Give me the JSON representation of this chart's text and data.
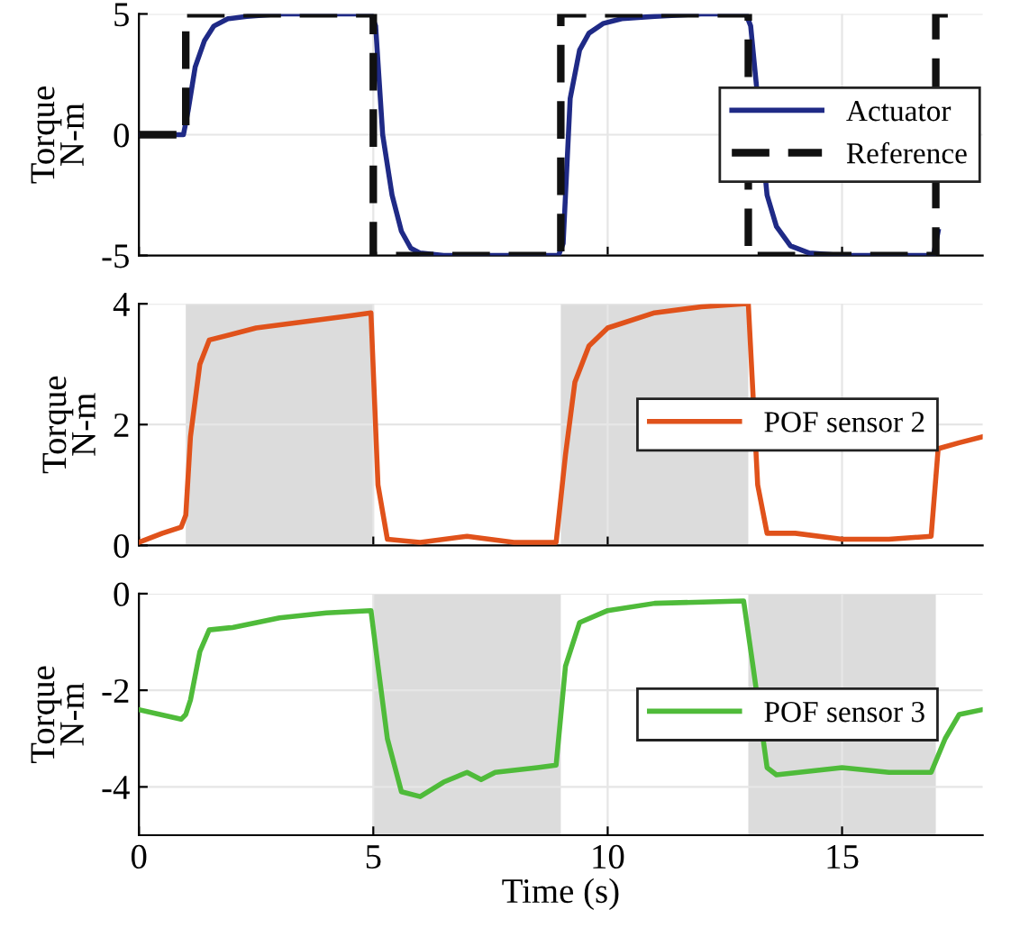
{
  "chart_data": [
    {
      "type": "line",
      "ylabel": "Torque\nN-m",
      "xlim": [
        0,
        18
      ],
      "xticks": [
        0,
        5,
        10,
        15
      ],
      "ylim": [
        -5,
        5
      ],
      "yticks": [
        -5,
        0,
        5
      ],
      "tick_labels": "y",
      "grid": true,
      "legend": "right",
      "series": [
        {
          "name": "Actuator",
          "color": "#1f2a86",
          "line_style": "solid",
          "x": [
            0,
            0.95,
            1.05,
            1.2,
            1.4,
            1.6,
            1.9,
            2.3,
            3,
            4,
            4.95,
            5.05,
            5.2,
            5.4,
            5.6,
            5.8,
            6,
            6.5,
            7,
            8,
            8.95,
            9.05,
            9.2,
            9.4,
            9.6,
            9.9,
            10.3,
            11,
            12,
            12.95,
            13.05,
            13.4,
            13.6,
            13.9,
            14.3,
            15,
            16,
            16.95,
            17.05
          ],
          "values": [
            0,
            0,
            1,
            2.8,
            3.9,
            4.5,
            4.8,
            4.9,
            5,
            5,
            5,
            4.5,
            0,
            -2.5,
            -4,
            -4.7,
            -4.9,
            -5,
            -5,
            -5,
            -5,
            -4.5,
            1.5,
            3.5,
            4.2,
            4.6,
            4.8,
            4.9,
            5,
            5,
            4.5,
            -2.5,
            -3.8,
            -4.6,
            -4.9,
            -5,
            -5,
            -5,
            -4
          ]
        },
        {
          "name": "Reference",
          "color": "#111111",
          "line_style": "dashed",
          "x": [
            0,
            1,
            1,
            5,
            5,
            9,
            9,
            13,
            13,
            17,
            17,
            17.5
          ],
          "values": [
            0,
            0,
            5,
            5,
            -5,
            -5,
            5,
            5,
            -5,
            -5,
            5,
            5
          ]
        }
      ]
    },
    {
      "type": "line",
      "ylabel": "Torque\nN-m",
      "xlim": [
        0,
        18
      ],
      "xticks": [
        0,
        5,
        10,
        15
      ],
      "ylim": [
        0,
        4
      ],
      "yticks": [
        0,
        2,
        4
      ],
      "tick_labels": "y",
      "grid": true,
      "legend": "right",
      "bands": [
        {
          "axis": "x",
          "from": 1,
          "to": 5,
          "color": "#dcdcdc"
        },
        {
          "axis": "x",
          "from": 9,
          "to": 13,
          "color": "#dcdcdc"
        }
      ],
      "series": [
        {
          "name": "POF sensor 2",
          "color": "#e0521b",
          "line_style": "solid",
          "x": [
            0,
            0.5,
            0.9,
            1.0,
            1.1,
            1.3,
            1.5,
            2.5,
            3.5,
            4.5,
            4.95,
            5.1,
            5.3,
            6,
            7,
            8,
            8.9,
            9.1,
            9.3,
            9.6,
            10,
            11,
            12,
            12.9,
            13.0,
            13.2,
            13.4,
            14,
            15,
            16,
            16.9,
            17.05,
            17.5,
            18
          ],
          "values": [
            0.05,
            0.2,
            0.3,
            0.5,
            1.8,
            3.0,
            3.4,
            3.6,
            3.7,
            3.8,
            3.85,
            1.0,
            0.1,
            0.05,
            0.15,
            0.05,
            0.05,
            1.5,
            2.7,
            3.3,
            3.6,
            3.85,
            3.95,
            4.0,
            4.0,
            1.0,
            0.2,
            0.2,
            0.1,
            0.1,
            0.15,
            1.6,
            1.7,
            1.8
          ]
        }
      ]
    },
    {
      "type": "line",
      "ylabel": "Torque\nN-m",
      "xlabel": "Time (s)",
      "xlim": [
        0,
        18
      ],
      "xticks": [
        0,
        5,
        10,
        15
      ],
      "ylim": [
        -5,
        0
      ],
      "yticks": [
        -4,
        -2,
        0
      ],
      "grid": true,
      "legend": "right",
      "bands": [
        {
          "axis": "x",
          "from": 5,
          "to": 9,
          "color": "#dcdcdc"
        },
        {
          "axis": "x",
          "from": 13,
          "to": 17,
          "color": "#dcdcdc"
        }
      ],
      "series": [
        {
          "name": "POF sensor 3",
          "color": "#4fbb3a",
          "line_style": "solid",
          "x": [
            0,
            0.9,
            1.0,
            1.1,
            1.3,
            1.5,
            2,
            3,
            4,
            4.95,
            5.1,
            5.3,
            5.6,
            6,
            6.5,
            7,
            7.3,
            7.6,
            8.5,
            8.9,
            9.1,
            9.4,
            10,
            11,
            12.9,
            13.1,
            13.4,
            13.6,
            15,
            16,
            16.9,
            17.2,
            17.5,
            18
          ],
          "values": [
            -2.4,
            -2.6,
            -2.5,
            -2.2,
            -1.2,
            -0.75,
            -0.7,
            -0.5,
            -0.4,
            -0.35,
            -1.5,
            -3.0,
            -4.1,
            -4.2,
            -3.9,
            -3.7,
            -3.85,
            -3.7,
            -3.6,
            -3.55,
            -1.5,
            -0.6,
            -0.35,
            -0.2,
            -0.15,
            -1.5,
            -3.6,
            -3.75,
            -3.6,
            -3.7,
            -3.7,
            -3.0,
            -2.5,
            -2.4
          ]
        }
      ]
    }
  ]
}
